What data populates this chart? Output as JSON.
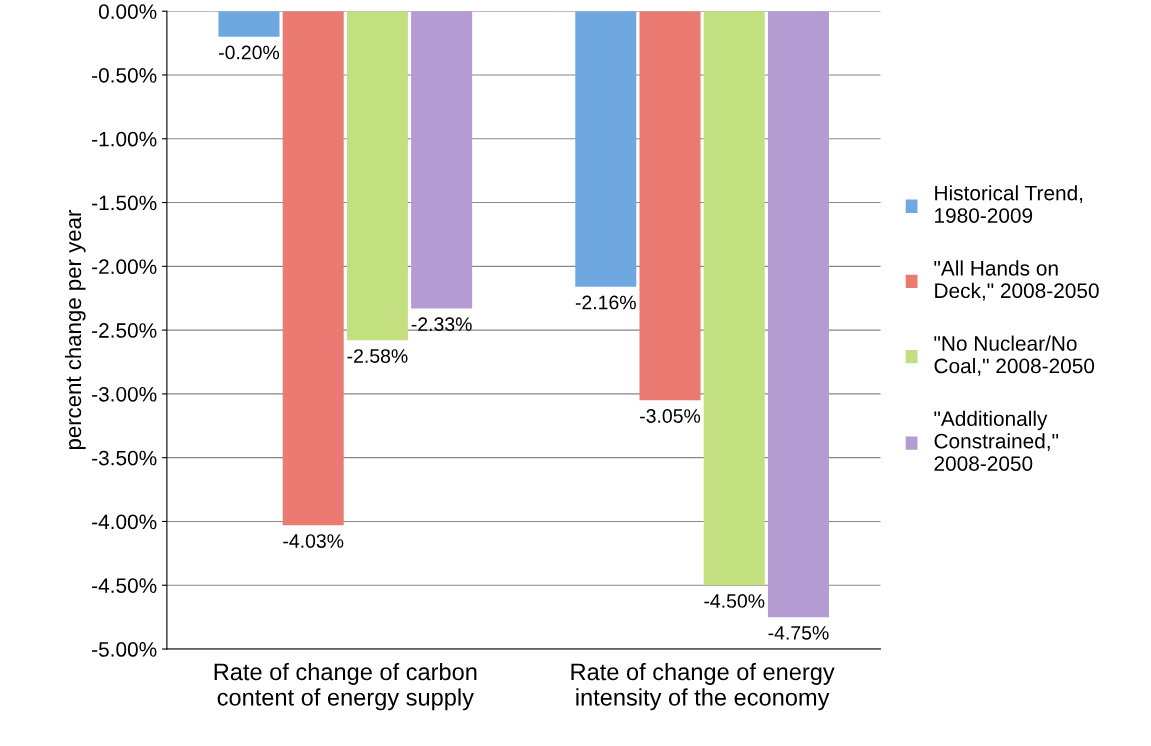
{
  "chart_data": {
    "type": "bar",
    "ylabel": "percent change per year",
    "categories": [
      "Rate of change of carbon\ncontent of energy supply",
      "Rate of change of energy\nintensity of the economy"
    ],
    "series": [
      {
        "name": "Historical Trend,\n1980-2009",
        "color": "#6fa8e0",
        "values": [
          -0.2,
          -2.16
        ],
        "value_labels": [
          "-0.20%",
          "-2.16%"
        ]
      },
      {
        "name": "\"All Hands on\nDeck,\" 2008-2050",
        "color": "#ea7a72",
        "values": [
          -4.03,
          -3.05
        ],
        "value_labels": [
          "-4.03%",
          "-3.05%"
        ]
      },
      {
        "name": "\"No Nuclear/No\nCoal,\" 2008-2050",
        "color": "#c2e080",
        "values": [
          -2.58,
          -4.5
        ],
        "value_labels": [
          "-2.58%",
          "-4.50%"
        ]
      },
      {
        "name": "\"Additionally\nConstrained,\"\n2008-2050",
        "color": "#b49bd2",
        "values": [
          -2.33,
          -4.75
        ],
        "value_labels": [
          "-2.33%",
          "-4.75%"
        ]
      }
    ],
    "ylim": [
      -5,
      0
    ],
    "yticks": [
      {
        "value": 0,
        "label": "0.00%"
      },
      {
        "value": -0.5,
        "label": "-0.50%"
      },
      {
        "value": -1,
        "label": "-1.00%"
      },
      {
        "value": -1.5,
        "label": "-1.50%"
      },
      {
        "value": -2,
        "label": "-2.00%"
      },
      {
        "value": -2.5,
        "label": "-2.50%"
      },
      {
        "value": -3,
        "label": "-3.00%"
      },
      {
        "value": -3.5,
        "label": "-3.50%"
      },
      {
        "value": -4,
        "label": "-4.00%"
      },
      {
        "value": -4.5,
        "label": "-4.50%"
      },
      {
        "value": -5,
        "label": "-5.00%"
      }
    ],
    "grid": "y",
    "legend": "right"
  }
}
